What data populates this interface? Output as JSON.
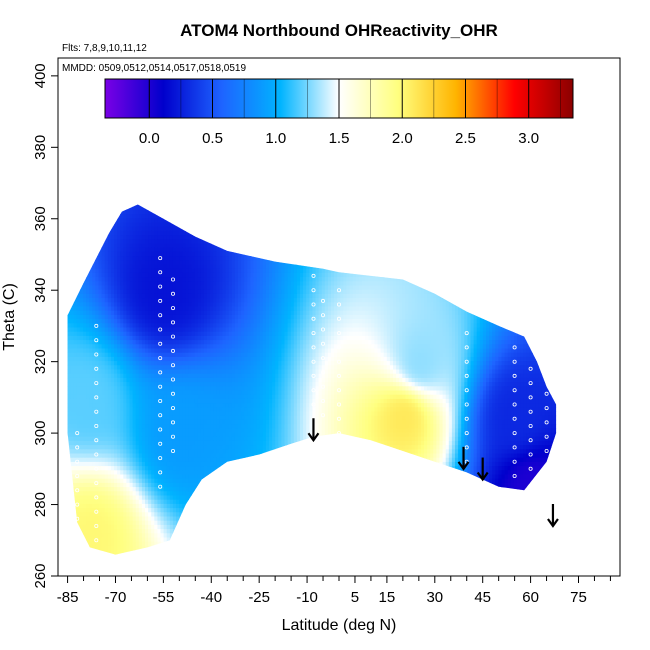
{
  "chart_data": {
    "type": "heatmap",
    "title": "ATOM4 Northbound OHReactivity_OHR",
    "subtitle_flights": "Flts: 7,8,9,10,11,12",
    "subtitle_dates": "MMDD: 0509,0512,0514,0517,0518,0519",
    "xlabel": "Latitude (deg N)",
    "ylabel": "Theta (C)",
    "xlim": [
      -88,
      88
    ],
    "ylim": [
      260,
      405
    ],
    "x_ticks": [
      -85,
      -70,
      -55,
      -40,
      -25,
      -10,
      5,
      15,
      30,
      45,
      60,
      75
    ],
    "x_tick_labels": [
      "-85",
      "-70",
      "-55",
      "-40",
      "-25",
      "-10",
      "5",
      "15",
      "30",
      "45",
      "60",
      "75"
    ],
    "y_ticks": [
      260,
      280,
      300,
      320,
      340,
      360,
      380,
      400
    ],
    "y_tick_labels": [
      "260",
      "280",
      "300",
      "320",
      "340",
      "360",
      "380",
      "400"
    ],
    "colorbar": {
      "range": [
        -0.35,
        3.35
      ],
      "ticks": [
        0.0,
        0.5,
        1.0,
        1.5,
        2.0,
        2.5,
        3.0
      ],
      "tick_labels": [
        "0.0",
        "0.5",
        "1.0",
        "1.5",
        "2.0",
        "2.5",
        "3.0"
      ],
      "colors": [
        "#7a00e6",
        "#0000cc",
        "#1e64ff",
        "#00b4ff",
        "#ffffff",
        "#ffff80",
        "#ffb400",
        "#ff0000",
        "#8b0000"
      ]
    },
    "tropopause_arrows_lat": [
      -8,
      39,
      45,
      67
    ],
    "tropopause_arrows_theta": [
      298,
      290,
      287,
      274
    ],
    "domain_top": [
      [
        -85,
        333
      ],
      [
        -80,
        342
      ],
      [
        -72,
        356
      ],
      [
        -68,
        362
      ],
      [
        -63,
        364
      ],
      [
        -55,
        360
      ],
      [
        -45,
        355
      ],
      [
        -35,
        351
      ],
      [
        -20,
        348
      ],
      [
        -5,
        346
      ],
      [
        0,
        345
      ],
      [
        10,
        344
      ],
      [
        20,
        343
      ],
      [
        30,
        339
      ],
      [
        40,
        334
      ],
      [
        50,
        330
      ],
      [
        58,
        327
      ],
      [
        62,
        320
      ],
      [
        65,
        313
      ],
      [
        68,
        308
      ]
    ],
    "domain_bottom": [
      [
        -85,
        300
      ],
      [
        -82,
        275
      ],
      [
        -78,
        268
      ],
      [
        -70,
        266
      ],
      [
        -60,
        268
      ],
      [
        -53,
        270
      ],
      [
        -48,
        280
      ],
      [
        -43,
        287
      ],
      [
        -35,
        292
      ],
      [
        -25,
        294
      ],
      [
        -15,
        297
      ],
      [
        -8,
        299
      ],
      [
        0,
        300
      ],
      [
        10,
        298
      ],
      [
        20,
        295
      ],
      [
        30,
        292
      ],
      [
        40,
        289
      ],
      [
        50,
        285
      ],
      [
        58,
        284
      ],
      [
        65,
        292
      ],
      [
        68,
        300
      ]
    ],
    "field_description_values": [
      {
        "lat": -80,
        "theta": 310,
        "value": 1.2
      },
      {
        "lat": -78,
        "theta": 272,
        "value": 2.0
      },
      {
        "lat": -55,
        "theta": 340,
        "value": 0.2
      },
      {
        "lat": -50,
        "theta": 300,
        "value": 0.9
      },
      {
        "lat": 20,
        "theta": 305,
        "value": 2.1
      },
      {
        "lat": 25,
        "theta": 320,
        "value": 1.3
      },
      {
        "lat": 55,
        "theta": 305,
        "value": 0.3
      },
      {
        "lat": 60,
        "theta": 285,
        "value": 0.0
      }
    ]
  }
}
